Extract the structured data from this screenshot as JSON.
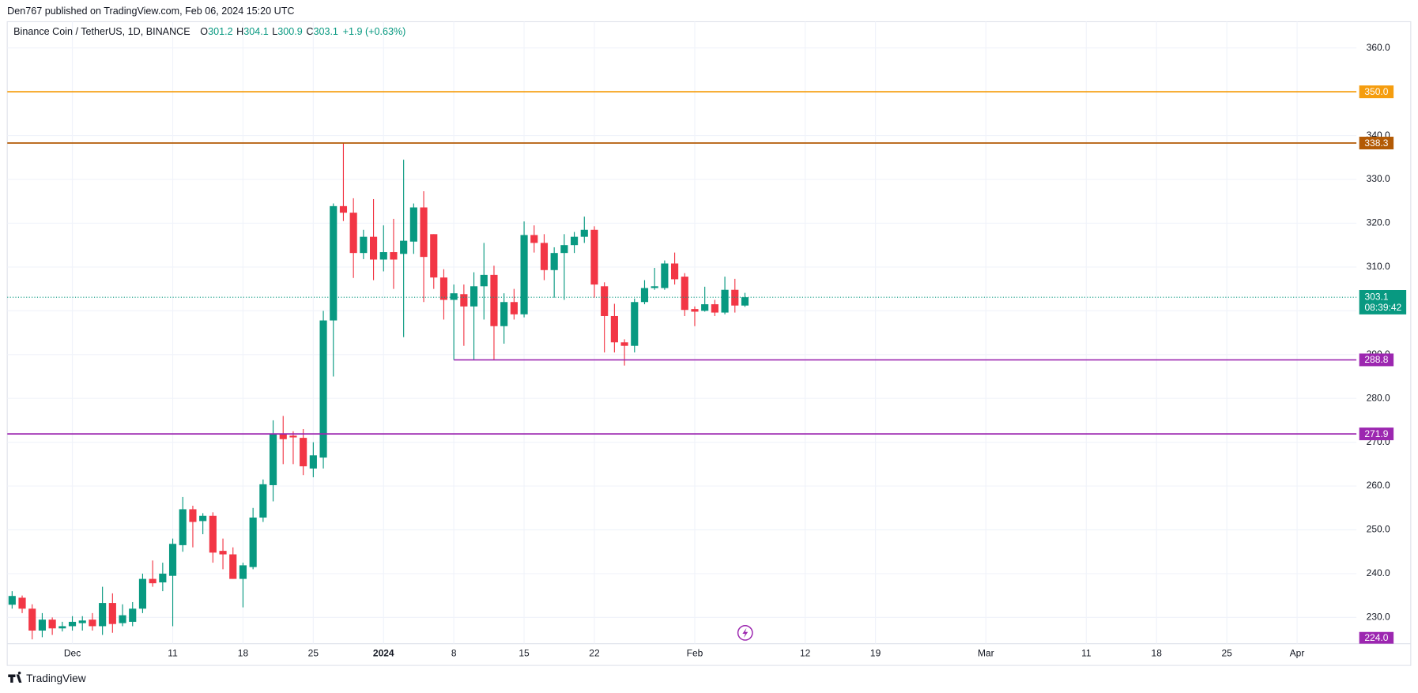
{
  "header": "Den767 published on TradingView.com, Feb 06, 2024 15:20 UTC",
  "footer": "TradingView",
  "legend": {
    "symbol": "Binance Coin / TetherUS, 1D, BINANCE",
    "items": [
      {
        "label": "O",
        "value": "301.2"
      },
      {
        "label": "H",
        "value": "304.1"
      },
      {
        "label": "L",
        "value": "300.9"
      },
      {
        "label": "C",
        "value": "303.1"
      }
    ],
    "change": "+1.9 (+0.63%)"
  },
  "chart_data": {
    "type": "candlestick",
    "up_color": "#089981",
    "down_color": "#f23645",
    "x": [
      "2023-11-25",
      "2023-11-26",
      "2023-11-27",
      "2023-11-28",
      "2023-11-29",
      "2023-11-30",
      "2023-12-01",
      "2023-12-02",
      "2023-12-03",
      "2023-12-04",
      "2023-12-05",
      "2023-12-06",
      "2023-12-07",
      "2023-12-08",
      "2023-12-09",
      "2023-12-10",
      "2023-12-11",
      "2023-12-12",
      "2023-12-13",
      "2023-12-14",
      "2023-12-15",
      "2023-12-16",
      "2023-12-17",
      "2023-12-18",
      "2023-12-19",
      "2023-12-20",
      "2023-12-21",
      "2023-12-22",
      "2023-12-23",
      "2023-12-24",
      "2023-12-25",
      "2023-12-26",
      "2023-12-27",
      "2023-12-28",
      "2023-12-29",
      "2023-12-30",
      "2023-12-31",
      "2024-01-01",
      "2024-01-02",
      "2024-01-03",
      "2024-01-04",
      "2024-01-05",
      "2024-01-06",
      "2024-01-07",
      "2024-01-08",
      "2024-01-09",
      "2024-01-10",
      "2024-01-11",
      "2024-01-12",
      "2024-01-13",
      "2024-01-14",
      "2024-01-15",
      "2024-01-16",
      "2024-01-17",
      "2024-01-18",
      "2024-01-19",
      "2024-01-20",
      "2024-01-21",
      "2024-01-22",
      "2024-01-23",
      "2024-01-24",
      "2024-01-25",
      "2024-01-26",
      "2024-01-27",
      "2024-01-28",
      "2024-01-29",
      "2024-01-30",
      "2024-01-31",
      "2024-02-01",
      "2024-02-02",
      "2024-02-03",
      "2024-02-04",
      "2024-02-05",
      "2024-02-06"
    ],
    "open": [
      232.9,
      234.5,
      232,
      227,
      229.5,
      227.5,
      228,
      228.7,
      229.5,
      228,
      233.3,
      228.7,
      229,
      232,
      238.8,
      238,
      239.5,
      246.5,
      254.7,
      252,
      253.2,
      245.2,
      244.4,
      238.8,
      241.5,
      252.8,
      260.2,
      271.9,
      271.5,
      271,
      264,
      266.5,
      297.8,
      323.9,
      322.4,
      313.2,
      316.9,
      311.7,
      313.4,
      313,
      315.8,
      323.6,
      317.5,
      307.6,
      302.5,
      303.8,
      301,
      305.6,
      308.2,
      296.5,
      302,
      299.2,
      317.3,
      315.5,
      309.3,
      313.2,
      315,
      316.9,
      318.5,
      305.6,
      298.8,
      292.8,
      292,
      302,
      305.2,
      305.2,
      310.8,
      307.8,
      300.4,
      300,
      301.5,
      299.6,
      304.8,
      301.2
    ],
    "high": [
      236,
      235,
      233,
      231,
      230,
      229,
      230.3,
      230.3,
      231,
      237,
      235.5,
      233,
      233.5,
      240,
      243,
      242.5,
      248,
      257.5,
      255.5,
      253.8,
      254,
      248,
      246,
      242.5,
      255,
      261.5,
      275,
      276,
      272.5,
      273,
      270,
      300,
      324.5,
      338.3,
      325.7,
      318.5,
      325.5,
      319.5,
      321,
      334.5,
      324.5,
      327.3,
      317.5,
      309.5,
      306,
      306,
      308.8,
      315.5,
      310.3,
      304,
      305,
      320.4,
      319.5,
      317.5,
      314.5,
      317.5,
      318,
      321.5,
      319.3,
      306.5,
      301.6,
      293.5,
      302.8,
      307,
      309.8,
      311.5,
      313.3,
      308.6,
      301,
      305.5,
      302.5,
      307.8,
      307.3,
      304.1
    ],
    "low": [
      232,
      231,
      225,
      225.5,
      226,
      226.8,
      227,
      227,
      227,
      226,
      226.5,
      228,
      228,
      231,
      237,
      236,
      228,
      245,
      246,
      249,
      242.5,
      241,
      238.8,
      232.3,
      241,
      251.8,
      256.5,
      265,
      265,
      262.5,
      262,
      264,
      285,
      320.5,
      307.5,
      311.8,
      307,
      309,
      305,
      294,
      313,
      302,
      305,
      298,
      288.8,
      292,
      288.8,
      298,
      288.8,
      292.5,
      298,
      298.5,
      313.3,
      307,
      303,
      302.5,
      313.2,
      315.5,
      303,
      290.5,
      290.5,
      287.5,
      290.5,
      301.5,
      304.8,
      304.8,
      306,
      298.8,
      296.5,
      299.8,
      298.8,
      299.2,
      299.6,
      300.9
    ],
    "close": [
      234.9,
      232,
      227,
      229.5,
      227.5,
      228,
      229,
      229.3,
      228,
      233.3,
      228.5,
      230.5,
      232,
      238.8,
      237.8,
      240,
      246.8,
      254.7,
      251.8,
      253.2,
      244.8,
      244.4,
      238.8,
      241.9,
      252.8,
      260.4,
      271.9,
      270.7,
      271.1,
      264.5,
      267,
      297.8,
      323.9,
      322.4,
      313.2,
      316.9,
      311.7,
      313.4,
      311.7,
      316,
      323.6,
      312.3,
      307.6,
      302.5,
      304,
      301,
      305.6,
      308.2,
      296.5,
      302,
      299.2,
      317.3,
      315.5,
      309.3,
      313.2,
      315,
      316.9,
      318.5,
      306,
      298.8,
      292.8,
      292,
      302,
      305.2,
      305.6,
      310.8,
      307.2,
      300.2,
      299.8,
      301.5,
      299.6,
      304.8,
      301.2,
      303.1
    ],
    "xlim": [
      "2023-11-24",
      "2024-04-08"
    ],
    "xticks": [
      {
        "value": "2023-12-01",
        "label": "Dec"
      },
      {
        "value": "2023-12-11",
        "label": "11"
      },
      {
        "value": "2023-12-18",
        "label": "18"
      },
      {
        "value": "2023-12-25",
        "label": "25"
      },
      {
        "value": "2024-01-01",
        "label": "2024"
      },
      {
        "value": "2024-01-08",
        "label": "8"
      },
      {
        "value": "2024-01-15",
        "label": "15"
      },
      {
        "value": "2024-01-22",
        "label": "22"
      },
      {
        "value": "2024-02-01",
        "label": "Feb"
      },
      {
        "value": "2024-02-12",
        "label": "12"
      },
      {
        "value": "2024-02-19",
        "label": "19"
      },
      {
        "value": "2024-03-01",
        "label": "Mar"
      },
      {
        "value": "2024-03-11",
        "label": "11"
      },
      {
        "value": "2024-03-18",
        "label": "18"
      },
      {
        "value": "2024-03-25",
        "label": "25"
      },
      {
        "value": "2024-04-01",
        "label": "Apr"
      }
    ],
    "ylim": [
      224.0,
      366
    ],
    "yticks": [
      {
        "value": 230,
        "label": "230.0"
      },
      {
        "value": 240,
        "label": "240.0"
      },
      {
        "value": 250,
        "label": "250.0"
      },
      {
        "value": 260,
        "label": "260.0"
      },
      {
        "value": 270,
        "label": "270.0"
      },
      {
        "value": 280,
        "label": "280.0"
      },
      {
        "value": 290,
        "label": "290.0"
      },
      {
        "value": 300,
        "label": "300.0"
      },
      {
        "value": 310,
        "label": "310.0"
      },
      {
        "value": 320,
        "label": "320.0"
      },
      {
        "value": 330,
        "label": "330.0"
      },
      {
        "value": 340,
        "label": "340.0"
      },
      {
        "value": 350,
        "label": "350.0"
      },
      {
        "value": 360,
        "label": "360.0"
      }
    ],
    "grid": true,
    "hlines": [
      {
        "value": 350,
        "label": "350.0",
        "color": "#f59d0e"
      },
      {
        "value": 338.3,
        "label": "338.3",
        "color": "#b35a05"
      },
      {
        "value": 288.8,
        "label": "288.8",
        "color": "#9c27b0",
        "x_start": "2024-01-08"
      },
      {
        "value": 271.9,
        "label": "271.9",
        "color": "#9c27b0"
      }
    ],
    "last_price": {
      "value": 303.1,
      "label": "303.1",
      "countdown": "08:39:42",
      "color": "#089981"
    },
    "pinned_label": {
      "value": 224.0,
      "label": "224.0",
      "color": "#9c27b0"
    }
  }
}
